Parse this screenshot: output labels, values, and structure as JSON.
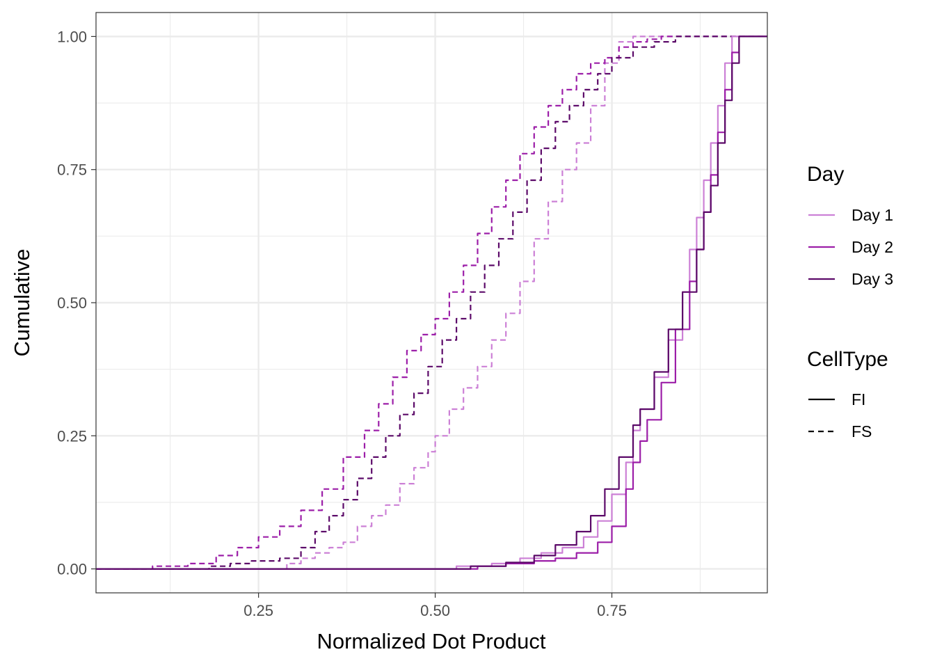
{
  "chart_data": {
    "type": "line",
    "subtype": "empirical-cumulative-distribution",
    "xlabel": "Normalized Dot Product",
    "ylabel": "Cumulative",
    "xlim": [
      0.02,
      0.97
    ],
    "ylim": [
      -0.045,
      1.045
    ],
    "x_ticks": [
      {
        "value": 0.25,
        "label": "0.25"
      },
      {
        "value": 0.5,
        "label": "0.50"
      },
      {
        "value": 0.75,
        "label": "0.75"
      }
    ],
    "x_minor": [
      0.125,
      0.375,
      0.625,
      0.875
    ],
    "y_ticks": [
      {
        "value": 0.0,
        "label": "0.00"
      },
      {
        "value": 0.25,
        "label": "0.25"
      },
      {
        "value": 0.5,
        "label": "0.50"
      },
      {
        "value": 0.75,
        "label": "0.75"
      },
      {
        "value": 1.0,
        "label": "1.00"
      }
    ],
    "y_minor": [
      0.125,
      0.375,
      0.625,
      0.875
    ],
    "grid": true,
    "legend": {
      "placement": "right",
      "day": {
        "title": "Day",
        "entries": [
          {
            "label": "Day 1",
            "color": "#cc80d6"
          },
          {
            "label": "Day 2",
            "color": "#9c1ea8"
          },
          {
            "label": "Day 3",
            "color": "#5c0a69"
          }
        ]
      },
      "celltype": {
        "title": "CellType",
        "entries": [
          {
            "label": "FI",
            "linetype": "solid"
          },
          {
            "label": "FS",
            "linetype": "dashed"
          }
        ]
      }
    },
    "series": [
      {
        "day": "Day 1",
        "celltype": "FS",
        "color": "#cc80d6",
        "dashed": true,
        "points": [
          [
            0.02,
            0
          ],
          [
            0.25,
            0
          ],
          [
            0.28,
            0
          ],
          [
            0.29,
            0.01
          ],
          [
            0.31,
            0.02
          ],
          [
            0.33,
            0.03
          ],
          [
            0.35,
            0.04
          ],
          [
            0.37,
            0.05
          ],
          [
            0.39,
            0.08
          ],
          [
            0.41,
            0.1
          ],
          [
            0.43,
            0.12
          ],
          [
            0.45,
            0.16
          ],
          [
            0.47,
            0.19
          ],
          [
            0.49,
            0.22
          ],
          [
            0.5,
            0.25
          ],
          [
            0.52,
            0.3
          ],
          [
            0.54,
            0.34
          ],
          [
            0.56,
            0.38
          ],
          [
            0.58,
            0.43
          ],
          [
            0.6,
            0.48
          ],
          [
            0.62,
            0.54
          ],
          [
            0.64,
            0.62
          ],
          [
            0.66,
            0.69
          ],
          [
            0.68,
            0.75
          ],
          [
            0.7,
            0.8
          ],
          [
            0.72,
            0.87
          ],
          [
            0.74,
            0.95
          ],
          [
            0.76,
            0.99
          ],
          [
            0.78,
            1.0
          ],
          [
            0.97,
            1.0
          ]
        ]
      },
      {
        "day": "Day 2",
        "celltype": "FS",
        "color": "#9c1ea8",
        "dashed": true,
        "points": [
          [
            0.02,
            0
          ],
          [
            0.06,
            0
          ],
          [
            0.1,
            0.005
          ],
          [
            0.15,
            0.01
          ],
          [
            0.19,
            0.025
          ],
          [
            0.22,
            0.04
          ],
          [
            0.25,
            0.06
          ],
          [
            0.28,
            0.08
          ],
          [
            0.31,
            0.11
          ],
          [
            0.34,
            0.15
          ],
          [
            0.37,
            0.21
          ],
          [
            0.4,
            0.26
          ],
          [
            0.42,
            0.31
          ],
          [
            0.44,
            0.36
          ],
          [
            0.46,
            0.41
          ],
          [
            0.48,
            0.44
          ],
          [
            0.5,
            0.47
          ],
          [
            0.52,
            0.52
          ],
          [
            0.54,
            0.57
          ],
          [
            0.56,
            0.63
          ],
          [
            0.58,
            0.68
          ],
          [
            0.6,
            0.73
          ],
          [
            0.62,
            0.78
          ],
          [
            0.64,
            0.83
          ],
          [
            0.66,
            0.87
          ],
          [
            0.68,
            0.9
          ],
          [
            0.7,
            0.93
          ],
          [
            0.72,
            0.95
          ],
          [
            0.74,
            0.96
          ],
          [
            0.76,
            0.98
          ],
          [
            0.78,
            0.99
          ],
          [
            0.8,
            0.995
          ],
          [
            0.82,
            1.0
          ],
          [
            0.97,
            1.0
          ]
        ]
      },
      {
        "day": "Day 3",
        "celltype": "FS",
        "color": "#5c0a69",
        "dashed": true,
        "points": [
          [
            0.02,
            0
          ],
          [
            0.14,
            0
          ],
          [
            0.18,
            0.005
          ],
          [
            0.21,
            0.01
          ],
          [
            0.24,
            0.015
          ],
          [
            0.28,
            0.02
          ],
          [
            0.31,
            0.04
          ],
          [
            0.33,
            0.07
          ],
          [
            0.35,
            0.1
          ],
          [
            0.37,
            0.13
          ],
          [
            0.39,
            0.17
          ],
          [
            0.41,
            0.21
          ],
          [
            0.43,
            0.25
          ],
          [
            0.45,
            0.29
          ],
          [
            0.47,
            0.33
          ],
          [
            0.49,
            0.38
          ],
          [
            0.51,
            0.43
          ],
          [
            0.53,
            0.47
          ],
          [
            0.55,
            0.52
          ],
          [
            0.57,
            0.57
          ],
          [
            0.59,
            0.62
          ],
          [
            0.61,
            0.67
          ],
          [
            0.63,
            0.73
          ],
          [
            0.65,
            0.79
          ],
          [
            0.67,
            0.84
          ],
          [
            0.69,
            0.87
          ],
          [
            0.71,
            0.9
          ],
          [
            0.73,
            0.93
          ],
          [
            0.75,
            0.96
          ],
          [
            0.78,
            0.98
          ],
          [
            0.81,
            0.99
          ],
          [
            0.84,
            1.0
          ],
          [
            0.97,
            1.0
          ]
        ]
      },
      {
        "day": "Day 1",
        "celltype": "FI",
        "color": "#cc80d6",
        "dashed": false,
        "points": [
          [
            0.02,
            0
          ],
          [
            0.5,
            0
          ],
          [
            0.53,
            0.005
          ],
          [
            0.58,
            0.01
          ],
          [
            0.62,
            0.02
          ],
          [
            0.65,
            0.03
          ],
          [
            0.68,
            0.04
          ],
          [
            0.71,
            0.06
          ],
          [
            0.73,
            0.09
          ],
          [
            0.75,
            0.14
          ],
          [
            0.77,
            0.2
          ],
          [
            0.78,
            0.26
          ],
          [
            0.79,
            0.3
          ],
          [
            0.81,
            0.36
          ],
          [
            0.83,
            0.43
          ],
          [
            0.85,
            0.52
          ],
          [
            0.86,
            0.6
          ],
          [
            0.87,
            0.66
          ],
          [
            0.88,
            0.73
          ],
          [
            0.89,
            0.8
          ],
          [
            0.9,
            0.87
          ],
          [
            0.91,
            0.95
          ],
          [
            0.92,
            1.0
          ],
          [
            0.97,
            1.0
          ]
        ]
      },
      {
        "day": "Day 2",
        "celltype": "FI",
        "color": "#9c1ea8",
        "dashed": false,
        "points": [
          [
            0.02,
            0
          ],
          [
            0.52,
            0
          ],
          [
            0.56,
            0.005
          ],
          [
            0.6,
            0.01
          ],
          [
            0.64,
            0.015
          ],
          [
            0.67,
            0.02
          ],
          [
            0.7,
            0.03
          ],
          [
            0.73,
            0.05
          ],
          [
            0.75,
            0.08
          ],
          [
            0.77,
            0.15
          ],
          [
            0.78,
            0.2
          ],
          [
            0.79,
            0.24
          ],
          [
            0.8,
            0.28
          ],
          [
            0.82,
            0.35
          ],
          [
            0.84,
            0.45
          ],
          [
            0.86,
            0.54
          ],
          [
            0.87,
            0.6
          ],
          [
            0.88,
            0.67
          ],
          [
            0.89,
            0.74
          ],
          [
            0.9,
            0.82
          ],
          [
            0.91,
            0.9
          ],
          [
            0.92,
            0.97
          ],
          [
            0.93,
            1.0
          ],
          [
            0.97,
            1.0
          ]
        ]
      },
      {
        "day": "Day 3",
        "celltype": "FI",
        "color": "#5c0a69",
        "dashed": false,
        "points": [
          [
            0.02,
            0
          ],
          [
            0.5,
            0
          ],
          [
            0.55,
            0.005
          ],
          [
            0.6,
            0.012
          ],
          [
            0.64,
            0.025
          ],
          [
            0.67,
            0.045
          ],
          [
            0.7,
            0.07
          ],
          [
            0.72,
            0.1
          ],
          [
            0.74,
            0.15
          ],
          [
            0.76,
            0.21
          ],
          [
            0.78,
            0.27
          ],
          [
            0.79,
            0.3
          ],
          [
            0.81,
            0.37
          ],
          [
            0.83,
            0.45
          ],
          [
            0.85,
            0.52
          ],
          [
            0.87,
            0.6
          ],
          [
            0.88,
            0.67
          ],
          [
            0.89,
            0.72
          ],
          [
            0.9,
            0.8
          ],
          [
            0.91,
            0.88
          ],
          [
            0.92,
            0.95
          ],
          [
            0.93,
            1.0
          ],
          [
            0.97,
            1.0
          ]
        ]
      }
    ]
  }
}
